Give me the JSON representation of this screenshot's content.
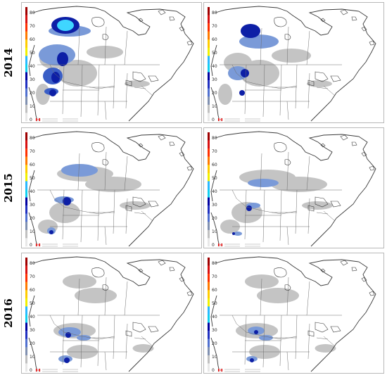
{
  "rows": [
    {
      "year": "2014"
    },
    {
      "year": "2015"
    },
    {
      "year": "2016"
    }
  ],
  "colorbar": {
    "ticks": [
      "80",
      "70",
      "60",
      "50",
      "40",
      "30",
      "20",
      "10",
      "0"
    ],
    "bands": [
      "#9e0000",
      "#d81010",
      "#ff3000",
      "#ff7a00",
      "#ffcc00",
      "#f0f000",
      "#2ab8ff",
      "#10d0f0",
      "#0000a0",
      "#2030c0",
      "#5070d0",
      "#8090b0",
      "#c0c0c0",
      "#e8e8e8"
    ]
  },
  "colors": {
    "background_grey": "#c4c4c4",
    "light_blue": "#7a9ad8",
    "medium_blue": "#3a5ec6",
    "dark_blue": "#0d1fa6",
    "cyan": "#3fd6ff",
    "coast": "#3a3a3a",
    "borders": "#6d6d6d"
  },
  "icons": {
    "logo": "canada-flag-icon"
  }
}
